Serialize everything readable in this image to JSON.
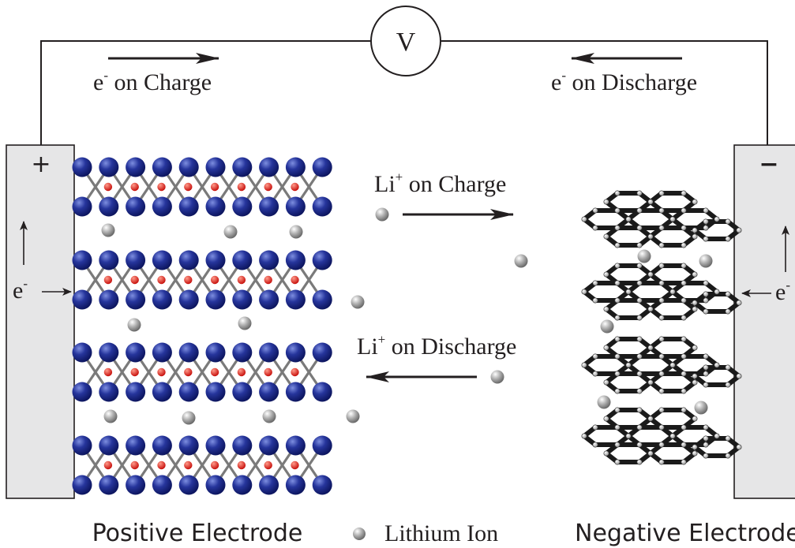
{
  "circuit": {
    "meter_symbol": "V",
    "charge_label": {
      "text": "e",
      "sup": "-",
      "rest": " on Charge"
    },
    "discharge_label": {
      "text": "e",
      "sup": "-",
      "rest": " on Discharge"
    }
  },
  "electrodes": {
    "positive": {
      "sign": "+",
      "electron_text": "e",
      "electron_sup": "-",
      "caption": "Positive Electrode"
    },
    "negative": {
      "sign": "−",
      "electron_text": "e",
      "electron_sup": "-",
      "caption": "Negative Electrode"
    }
  },
  "ion_flow": {
    "charge": {
      "text": "Li",
      "sup": "+",
      "rest": " on Charge"
    },
    "discharge": {
      "text": "Li",
      "sup": "+",
      "rest": " on Discharge"
    }
  },
  "legend": {
    "label": "Lithium Ion"
  },
  "colors": {
    "electrode_fill": "#e6e6e7",
    "metal_atom": "#1c2a8c",
    "oxygen_atom": "#e0201b",
    "lithium_ion": "#9a9a9a",
    "graphite": "#1a1a1a",
    "wire": "#231f20"
  }
}
